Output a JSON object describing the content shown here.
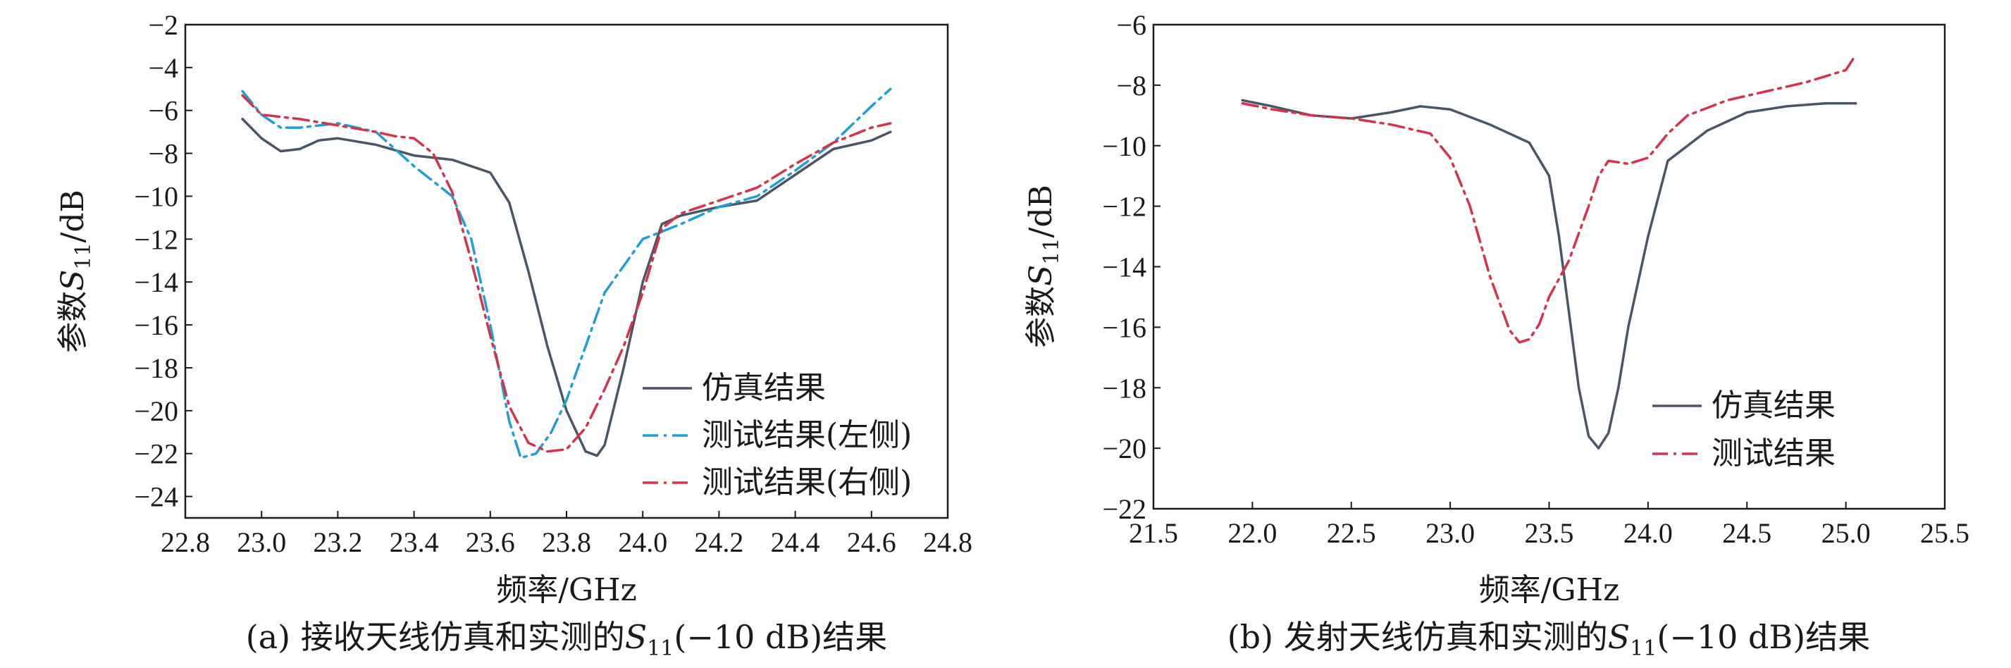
{
  "chart_data": [
    {
      "id": "a",
      "type": "line",
      "xlabel": "频率/GHz",
      "ylabel_prefix": "参数",
      "ylabel_symbol": "S",
      "ylabel_sub": "11",
      "ylabel_suffix": "/dB",
      "xlim": [
        22.8,
        24.8
      ],
      "ylim": [
        -25,
        -2
      ],
      "xticks": [
        22.8,
        23.0,
        23.2,
        23.4,
        23.6,
        23.8,
        24.0,
        24.2,
        24.4,
        24.6,
        24.8
      ],
      "yticks": [
        -2,
        -4,
        -6,
        -8,
        -10,
        -12,
        -14,
        -16,
        -18,
        -20,
        -22,
        -24
      ],
      "xtick_labels": [
        "22.8",
        "23.0",
        "23.2",
        "23.4",
        "23.6",
        "23.8",
        "24.0",
        "24.2",
        "24.4",
        "24.6",
        "24.8"
      ],
      "ytick_labels": [
        "−2",
        "−4",
        "−6",
        "−8",
        "−10",
        "−12",
        "−14",
        "−16",
        "−18",
        "−20",
        "−22",
        "−24"
      ],
      "caption_prefix": "(a) 接收天线仿真和实测的",
      "caption_symbol": "S",
      "caption_sub": "11",
      "caption_suffix": "(−10 dB)结果",
      "legend_position": "lower-right",
      "series": [
        {
          "name": "仿真结果",
          "style": "solid",
          "color": "#4a5566",
          "x": [
            22.95,
            23.0,
            23.05,
            23.1,
            23.15,
            23.2,
            23.3,
            23.4,
            23.5,
            23.6,
            23.65,
            23.7,
            23.75,
            23.8,
            23.85,
            23.88,
            23.9,
            23.95,
            24.0,
            24.05,
            24.1,
            24.2,
            24.3,
            24.4,
            24.5,
            24.6,
            24.65
          ],
          "y": [
            -6.4,
            -7.3,
            -7.9,
            -7.8,
            -7.4,
            -7.3,
            -7.6,
            -8.1,
            -8.3,
            -8.9,
            -10.3,
            -13.5,
            -17.0,
            -20.0,
            -21.9,
            -22.1,
            -21.6,
            -18.0,
            -14.0,
            -11.3,
            -10.9,
            -10.5,
            -10.2,
            -9.0,
            -7.8,
            -7.4,
            -7.0
          ]
        },
        {
          "name": "测试结果(左侧)",
          "style": "dashdot",
          "color": "#1f9fd6",
          "x": [
            22.95,
            23.0,
            23.05,
            23.1,
            23.2,
            23.3,
            23.4,
            23.5,
            23.55,
            23.6,
            23.65,
            23.68,
            23.72,
            23.76,
            23.8,
            23.85,
            23.9,
            24.0,
            24.1,
            24.2,
            24.3,
            24.4,
            24.5,
            24.6,
            24.65
          ],
          "y": [
            -5.1,
            -6.2,
            -6.8,
            -6.8,
            -6.6,
            -7.0,
            -8.6,
            -10.0,
            -12.0,
            -16.0,
            -20.5,
            -22.2,
            -22.0,
            -21.0,
            -19.5,
            -17.0,
            -14.5,
            -12.0,
            -11.3,
            -10.5,
            -10.0,
            -8.8,
            -7.5,
            -5.8,
            -5.0
          ]
        },
        {
          "name": "测试结果(右侧)",
          "style": "dashdot",
          "color": "#d6324a",
          "x": [
            22.95,
            23.0,
            23.1,
            23.2,
            23.3,
            23.35,
            23.4,
            23.45,
            23.5,
            23.55,
            23.6,
            23.65,
            23.7,
            23.75,
            23.8,
            23.85,
            23.9,
            23.95,
            24.0,
            24.05,
            24.1,
            24.2,
            24.3,
            24.4,
            24.5,
            24.6,
            24.65
          ],
          "y": [
            -5.3,
            -6.2,
            -6.4,
            -6.7,
            -7.0,
            -7.2,
            -7.3,
            -8.0,
            -9.8,
            -13.0,
            -16.5,
            -19.8,
            -21.5,
            -21.9,
            -21.8,
            -20.8,
            -19.0,
            -17.0,
            -14.5,
            -11.5,
            -10.8,
            -10.2,
            -9.6,
            -8.5,
            -7.5,
            -6.8,
            -6.6
          ]
        }
      ]
    },
    {
      "id": "b",
      "type": "line",
      "xlabel": "频率/GHz",
      "ylabel_prefix": "参数",
      "ylabel_symbol": "S",
      "ylabel_sub": "11",
      "ylabel_suffix": "/dB",
      "xlim": [
        21.5,
        25.5
      ],
      "ylim": [
        -22,
        -6
      ],
      "xticks": [
        21.5,
        22.0,
        22.5,
        23.0,
        23.5,
        24.0,
        24.5,
        25.0,
        25.5
      ],
      "yticks": [
        -6,
        -8,
        -10,
        -12,
        -14,
        -16,
        -18,
        -20,
        -22
      ],
      "xtick_labels": [
        "21.5",
        "22.0",
        "22.5",
        "23.0",
        "23.5",
        "24.0",
        "24.5",
        "25.0",
        "25.5"
      ],
      "ytick_labels": [
        "−6",
        "−8",
        "−10",
        "−12",
        "−14",
        "−16",
        "−18",
        "−20",
        "−22"
      ],
      "caption_prefix": "(b) 发射天线仿真和实测的",
      "caption_symbol": "S",
      "caption_sub": "11",
      "caption_suffix": "(−10 dB)结果",
      "legend_position": "lower-right",
      "series": [
        {
          "name": "仿真结果",
          "style": "solid",
          "color": "#4a5566",
          "x": [
            21.95,
            22.1,
            22.3,
            22.5,
            22.7,
            22.85,
            23.0,
            23.2,
            23.4,
            23.5,
            23.55,
            23.6,
            23.65,
            23.7,
            23.75,
            23.8,
            23.85,
            23.9,
            24.0,
            24.1,
            24.2,
            24.3,
            24.5,
            24.7,
            24.9,
            25.05
          ],
          "y": [
            -8.5,
            -8.7,
            -9.0,
            -9.1,
            -8.9,
            -8.7,
            -8.8,
            -9.3,
            -9.9,
            -11.0,
            -13.0,
            -15.5,
            -18.0,
            -19.6,
            -20.0,
            -19.5,
            -18.0,
            -16.0,
            -13.0,
            -10.5,
            -10.0,
            -9.5,
            -8.9,
            -8.7,
            -8.6,
            -8.6
          ]
        },
        {
          "name": "测试结果",
          "style": "dashdot",
          "color": "#d6324a",
          "x": [
            21.95,
            22.1,
            22.3,
            22.5,
            22.7,
            22.9,
            23.0,
            23.1,
            23.2,
            23.3,
            23.35,
            23.4,
            23.45,
            23.5,
            23.6,
            23.7,
            23.75,
            23.8,
            23.9,
            24.0,
            24.1,
            24.2,
            24.4,
            24.6,
            24.8,
            25.0,
            25.05
          ],
          "y": [
            -8.6,
            -8.8,
            -9.0,
            -9.1,
            -9.3,
            -9.6,
            -10.4,
            -12.0,
            -14.3,
            -16.1,
            -16.5,
            -16.4,
            -15.9,
            -15.0,
            -13.8,
            -12.0,
            -11.0,
            -10.5,
            -10.6,
            -10.4,
            -9.6,
            -9.0,
            -8.5,
            -8.2,
            -7.9,
            -7.5,
            -7.0
          ]
        }
      ]
    }
  ]
}
